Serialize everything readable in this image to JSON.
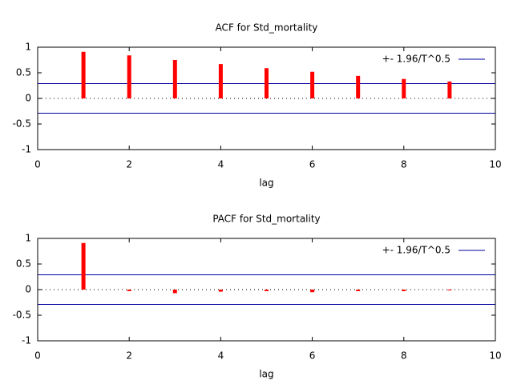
{
  "chart_data": [
    {
      "type": "bar",
      "title": "ACF for Std_mortality",
      "xlabel": "lag",
      "x": [
        1,
        2,
        3,
        4,
        5,
        6,
        7,
        8,
        9
      ],
      "values": [
        0.91,
        0.84,
        0.75,
        0.67,
        0.59,
        0.52,
        0.44,
        0.38,
        0.33
      ],
      "color": "#ff0000",
      "band_name": "+- 1.96/T^0.5",
      "band_values": [
        0.29,
        -0.29
      ],
      "band_color": "#0000a0",
      "xlim": [
        0,
        10
      ],
      "xticks": [
        0,
        2,
        4,
        6,
        8,
        10
      ],
      "ylim": [
        -1,
        1
      ],
      "yticks": [
        -1,
        -0.5,
        0,
        0.5,
        1
      ]
    },
    {
      "type": "bar",
      "title": "PACF for Std_mortality",
      "xlabel": "lag",
      "x": [
        1,
        2,
        3,
        4,
        5,
        6,
        7,
        8,
        9
      ],
      "values": [
        0.91,
        -0.03,
        -0.07,
        -0.04,
        -0.03,
        -0.05,
        -0.03,
        -0.03,
        -0.01
      ],
      "color": "#ff0000",
      "band_name": "+- 1.96/T^0.5",
      "band_values": [
        0.29,
        -0.29
      ],
      "band_color": "#0000a0",
      "xlim": [
        0,
        10
      ],
      "xticks": [
        0,
        2,
        4,
        6,
        8,
        10
      ],
      "ylim": [
        -1,
        1
      ],
      "yticks": [
        -1,
        -0.5,
        0,
        0.5,
        1
      ]
    }
  ]
}
